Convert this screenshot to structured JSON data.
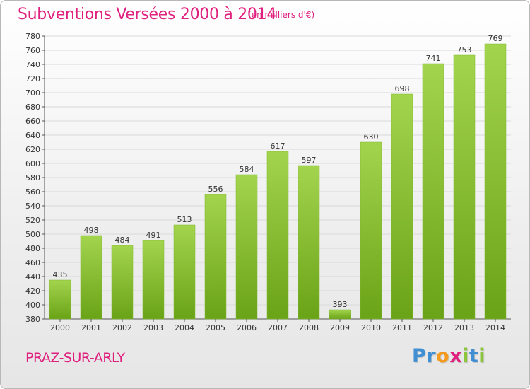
{
  "title": "Subventions Versées 2000 à 2014",
  "unit_note": "(en milliers d'€)",
  "commune": "PRAZ-SUR-ARLY",
  "logo": {
    "text": "Proxiti",
    "letters": [
      {
        "ch": "P",
        "color": "#3f8fd2"
      },
      {
        "ch": "r",
        "color": "#3f8fd2"
      },
      {
        "ch": "o",
        "color": "#f59a1c"
      },
      {
        "ch": "x",
        "color": "#e0207e"
      },
      {
        "ch": "i",
        "color": "#8cc43c"
      },
      {
        "ch": "t",
        "color": "#3f8fd2"
      },
      {
        "ch": "i",
        "color": "#8cc43c"
      }
    ]
  },
  "colors": {
    "accent": "#e0207e",
    "bar_light": "#a3d44e",
    "bar_dark": "#6aa317",
    "grid": "#d9d9d9"
  },
  "chart_data": {
    "type": "bar",
    "categories": [
      "2000",
      "2001",
      "2002",
      "2003",
      "2004",
      "2005",
      "2006",
      "2007",
      "2008",
      "2009",
      "2010",
      "2011",
      "2012",
      "2013",
      "2014"
    ],
    "values": [
      435,
      498,
      484,
      491,
      513,
      556,
      584,
      617,
      597,
      393,
      630,
      698,
      741,
      753,
      769
    ],
    "title": "Subventions Versées 2000 à 2014",
    "ylim": [
      380,
      780
    ],
    "ytick_step": 20,
    "grid": true,
    "data_labels": true
  }
}
